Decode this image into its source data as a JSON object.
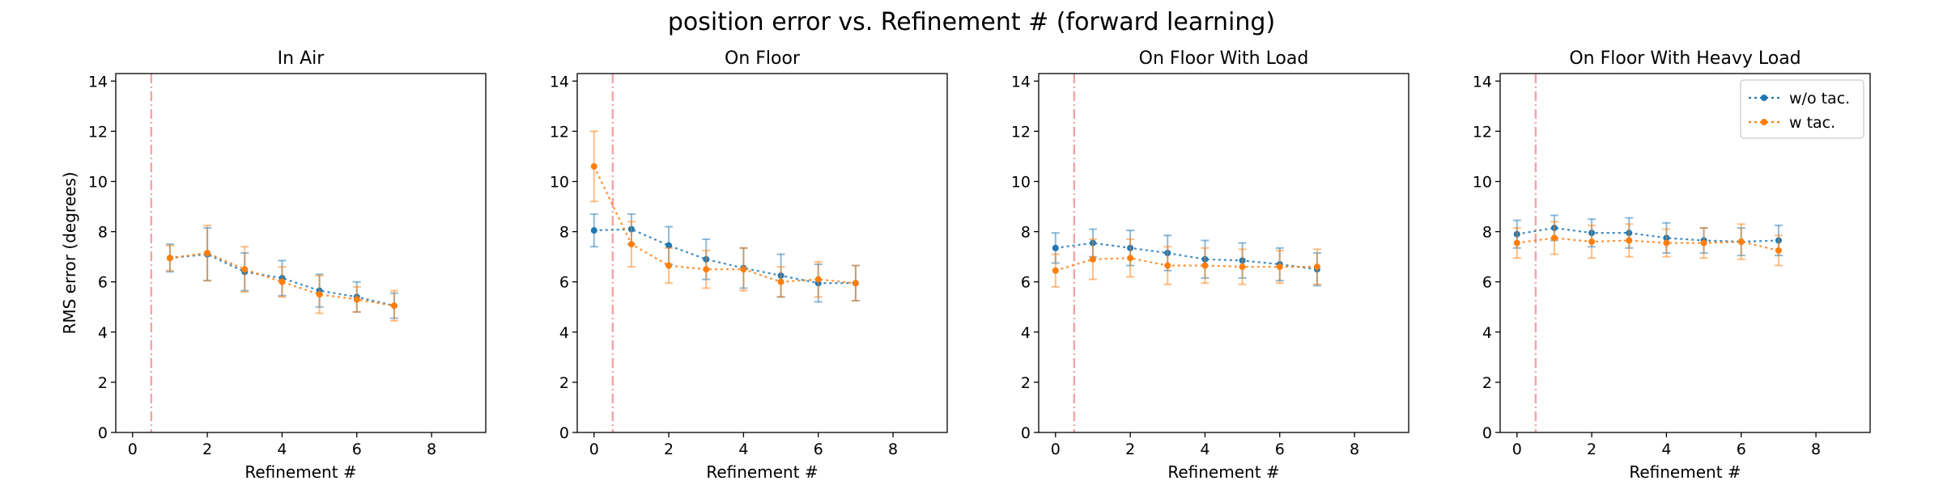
{
  "figure": {
    "title": "position error vs. Refinement # (forward learning)"
  },
  "chart_data": [
    {
      "type": "line",
      "title": "In Air",
      "xlabel": "Refinement #",
      "ylabel": "RMS error (degrees)",
      "xlim": [
        -0.45,
        9.45
      ],
      "ylim": [
        0,
        14.3
      ],
      "xticks": [
        0,
        2,
        4,
        6,
        8
      ],
      "yticks": [
        0,
        2,
        4,
        6,
        8,
        10,
        12,
        14
      ],
      "vline_x": 0.5,
      "grid": false,
      "legend": null,
      "series": [
        {
          "name": "w/o tac.",
          "color": "#1f77b4",
          "x": [
            1,
            2,
            3,
            4,
            5,
            6,
            7
          ],
          "y": [
            6.95,
            7.1,
            6.4,
            6.15,
            5.65,
            5.4,
            5.05
          ],
          "err": [
            0.55,
            1.05,
            0.75,
            0.7,
            0.65,
            0.6,
            0.5
          ]
        },
        {
          "name": "w tac.",
          "color": "#ff7f0e",
          "x": [
            1,
            2,
            3,
            4,
            5,
            6,
            7
          ],
          "y": [
            6.95,
            7.15,
            6.5,
            6.0,
            5.5,
            5.3,
            5.05
          ],
          "err": [
            0.5,
            1.1,
            0.9,
            0.6,
            0.75,
            0.5,
            0.6
          ]
        }
      ]
    },
    {
      "type": "line",
      "title": "On Floor",
      "xlabel": "Refinement #",
      "ylabel": "",
      "xlim": [
        -0.45,
        9.45
      ],
      "ylim": [
        0,
        14.3
      ],
      "xticks": [
        0,
        2,
        4,
        6,
        8
      ],
      "yticks": [
        0,
        2,
        4,
        6,
        8,
        10,
        12,
        14
      ],
      "vline_x": 0.5,
      "grid": false,
      "legend": null,
      "series": [
        {
          "name": "w/o tac.",
          "color": "#1f77b4",
          "x": [
            0,
            1,
            2,
            3,
            4,
            5,
            6,
            7
          ],
          "y": [
            8.05,
            8.1,
            7.45,
            6.9,
            6.55,
            6.25,
            5.95,
            5.95
          ],
          "err": [
            0.65,
            0.6,
            0.75,
            0.8,
            0.8,
            0.85,
            0.75,
            0.7
          ]
        },
        {
          "name": "w tac.",
          "color": "#ff7f0e",
          "x": [
            0,
            1,
            2,
            3,
            4,
            5,
            6,
            7
          ],
          "y": [
            10.6,
            7.5,
            6.65,
            6.5,
            6.5,
            6.0,
            6.1,
            5.95
          ],
          "err": [
            1.4,
            0.9,
            0.7,
            0.75,
            0.85,
            0.6,
            0.7,
            0.7
          ]
        }
      ]
    },
    {
      "type": "line",
      "title": "On Floor With Load",
      "xlabel": "Refinement #",
      "ylabel": "",
      "xlim": [
        -0.45,
        9.45
      ],
      "ylim": [
        0,
        14.3
      ],
      "xticks": [
        0,
        2,
        4,
        6,
        8
      ],
      "yticks": [
        0,
        2,
        4,
        6,
        8,
        10,
        12,
        14
      ],
      "vline_x": 0.5,
      "grid": false,
      "legend": null,
      "series": [
        {
          "name": "w/o tac.",
          "color": "#1f77b4",
          "x": [
            0,
            1,
            2,
            3,
            4,
            5,
            6,
            7
          ],
          "y": [
            7.35,
            7.55,
            7.35,
            7.15,
            6.9,
            6.85,
            6.7,
            6.5
          ],
          "err": [
            0.6,
            0.55,
            0.7,
            0.7,
            0.75,
            0.7,
            0.65,
            0.65
          ]
        },
        {
          "name": "w tac.",
          "color": "#ff7f0e",
          "x": [
            0,
            1,
            2,
            3,
            4,
            5,
            6,
            7
          ],
          "y": [
            6.45,
            6.9,
            6.95,
            6.65,
            6.65,
            6.6,
            6.6,
            6.6
          ],
          "err": [
            0.65,
            0.8,
            0.75,
            0.75,
            0.7,
            0.7,
            0.65,
            0.7
          ]
        }
      ]
    },
    {
      "type": "line",
      "title": "On Floor With Heavy Load",
      "xlabel": "Refinement #",
      "ylabel": "",
      "xlim": [
        -0.45,
        9.45
      ],
      "ylim": [
        0,
        14.3
      ],
      "xticks": [
        0,
        2,
        4,
        6,
        8
      ],
      "yticks": [
        0,
        2,
        4,
        6,
        8,
        10,
        12,
        14
      ],
      "vline_x": 0.5,
      "grid": false,
      "legend": "top-right",
      "series": [
        {
          "name": "w/o tac.",
          "color": "#1f77b4",
          "x": [
            0,
            1,
            2,
            3,
            4,
            5,
            6,
            7
          ],
          "y": [
            7.9,
            8.15,
            7.95,
            7.95,
            7.75,
            7.65,
            7.6,
            7.65
          ],
          "err": [
            0.55,
            0.5,
            0.55,
            0.6,
            0.6,
            0.5,
            0.55,
            0.6
          ]
        },
        {
          "name": "w tac.",
          "color": "#ff7f0e",
          "x": [
            0,
            1,
            2,
            3,
            4,
            5,
            6,
            7
          ],
          "y": [
            7.55,
            7.75,
            7.6,
            7.65,
            7.55,
            7.55,
            7.6,
            7.25
          ],
          "err": [
            0.6,
            0.65,
            0.65,
            0.65,
            0.55,
            0.6,
            0.7,
            0.6
          ]
        }
      ]
    }
  ]
}
